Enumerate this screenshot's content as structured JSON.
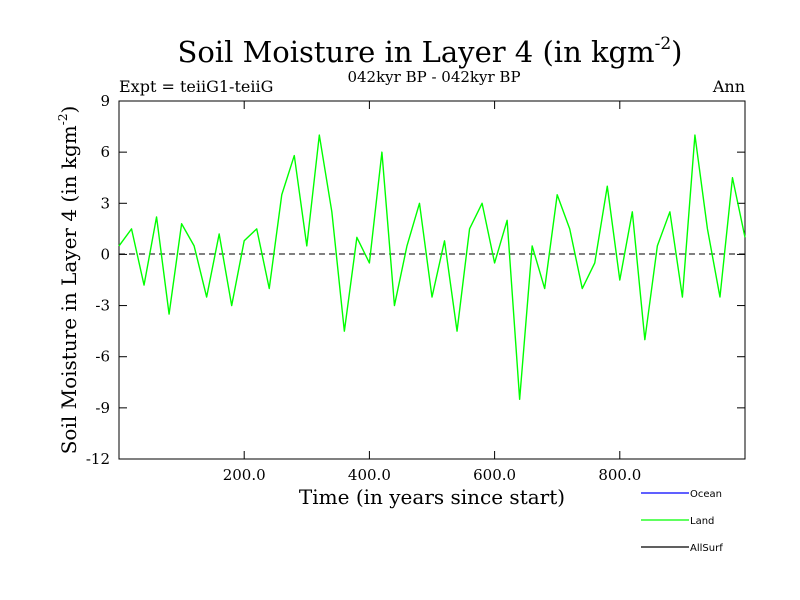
{
  "chart_data": {
    "type": "line",
    "title_main": "Soil Moisture in Layer 4 (in kgm",
    "title_sup": "-2",
    "title_close": ")",
    "subtitle": "042kyr BP - 042kyr BP",
    "left_note": "Expt = teiiG1-teiiG",
    "right_note": "Ann",
    "xlabel": "Time (in years since start)",
    "ylabel_main": "Soil Moisture in Layer 4 (in kgm",
    "ylabel_sup": "-2",
    "ylabel_close": ")",
    "xlim": [
      0,
      1000
    ],
    "ylim": [
      -12,
      9
    ],
    "x_ticks": [
      200,
      400,
      600,
      800
    ],
    "x_tick_labels": [
      "200.0",
      "400.0",
      "600.0",
      "800.0"
    ],
    "y_ticks": [
      9,
      6,
      3,
      0,
      -3,
      -6,
      -9,
      -12
    ],
    "y_tick_labels": [
      "9",
      "6",
      "3",
      "0",
      "-3",
      "-6",
      "-9",
      "-12"
    ],
    "zero_line": "dashed",
    "grid": false,
    "legend_position": "bottom-right",
    "series": [
      {
        "name": "Ocean",
        "color": "#0000ff",
        "values": []
      },
      {
        "name": "Land",
        "color": "#00ff00",
        "x": [
          0,
          20,
          40,
          60,
          80,
          100,
          120,
          140,
          160,
          180,
          200,
          220,
          240,
          260,
          280,
          300,
          320,
          340,
          360,
          380,
          400,
          420,
          440,
          460,
          480,
          500,
          520,
          540,
          560,
          580,
          600,
          620,
          640,
          660,
          680,
          700,
          720,
          740,
          760,
          780,
          800,
          820,
          840,
          860,
          880,
          900,
          920,
          940,
          960,
          980,
          1000
        ],
        "values": [
          0.5,
          1.5,
          -1.8,
          2.2,
          -3.5,
          1.8,
          0.5,
          -2.5,
          1.2,
          -3.0,
          0.8,
          1.5,
          -2.0,
          3.5,
          5.8,
          0.5,
          7.0,
          2.5,
          -4.5,
          1.0,
          -0.5,
          6.0,
          -3.0,
          0.5,
          3.0,
          -2.5,
          0.8,
          -4.5,
          1.5,
          3.0,
          -0.5,
          2.0,
          -8.5,
          0.5,
          -2.0,
          3.5,
          1.5,
          -2.0,
          -0.5,
          4.0,
          -1.5,
          2.5,
          -5.0,
          0.5,
          2.5,
          -2.5,
          7.0,
          1.5,
          -2.5,
          4.5,
          1.0
        ]
      },
      {
        "name": "AllSurf",
        "color": "#000000",
        "values": []
      }
    ]
  }
}
